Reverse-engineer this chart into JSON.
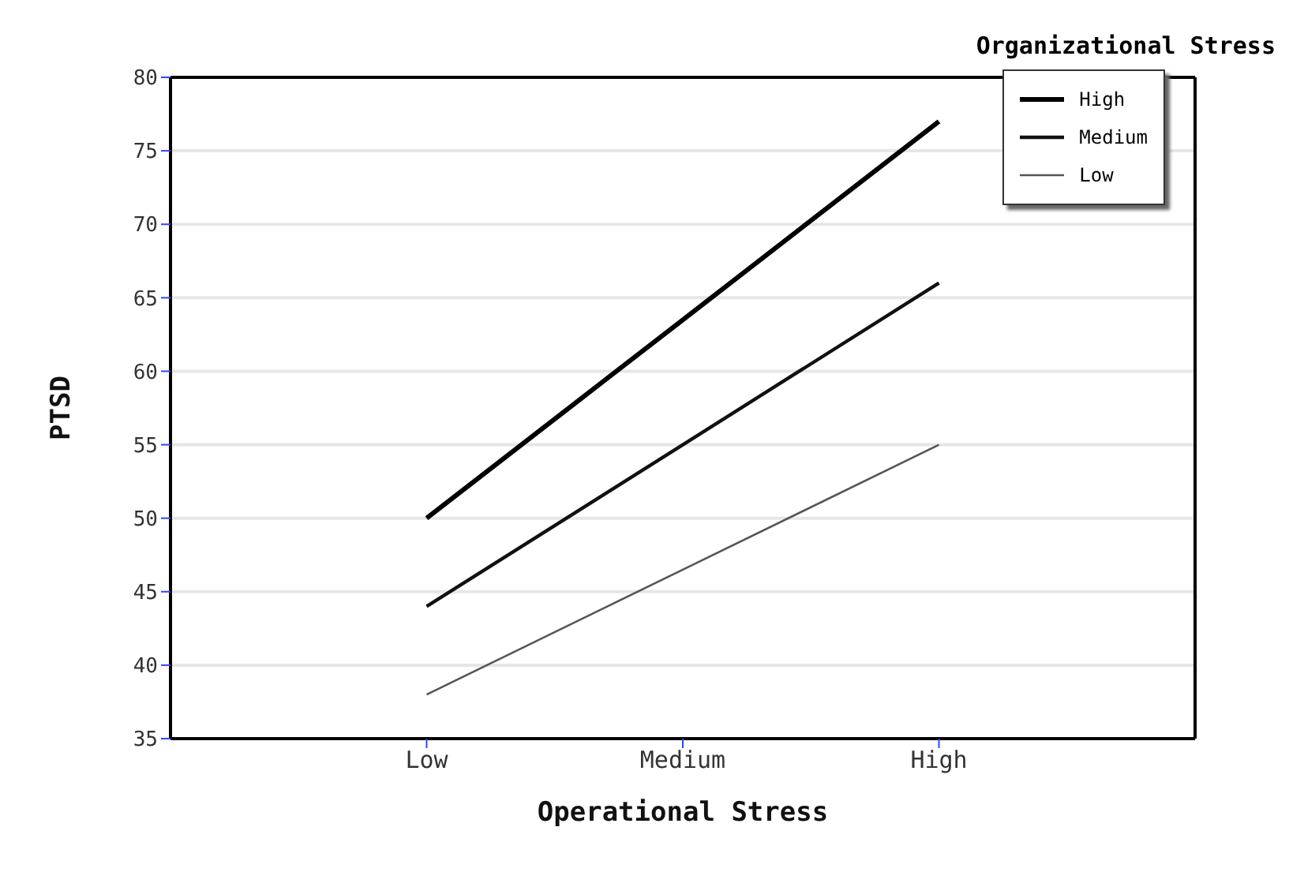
{
  "chart_data": {
    "type": "line",
    "xlabel": "Operational Stress",
    "ylabel": "PTSD",
    "legend_title": "Organizational Stress",
    "categories": [
      "Low",
      "Medium",
      "High"
    ],
    "series": [
      {
        "name": "High",
        "color": "#000000",
        "values": [
          50,
          63.5,
          77
        ]
      },
      {
        "name": "Medium",
        "color": "#111111",
        "values": [
          44,
          55,
          66
        ]
      },
      {
        "name": "Low",
        "color": "#555555",
        "values": [
          38,
          46.5,
          55
        ]
      }
    ],
    "ylim": [
      35,
      80
    ],
    "yticks": [
      35,
      40,
      45,
      50,
      55,
      60,
      65,
      70,
      75,
      80
    ],
    "grid": "y",
    "legend": "top right",
    "marker": "none",
    "line_style": "solid"
  }
}
